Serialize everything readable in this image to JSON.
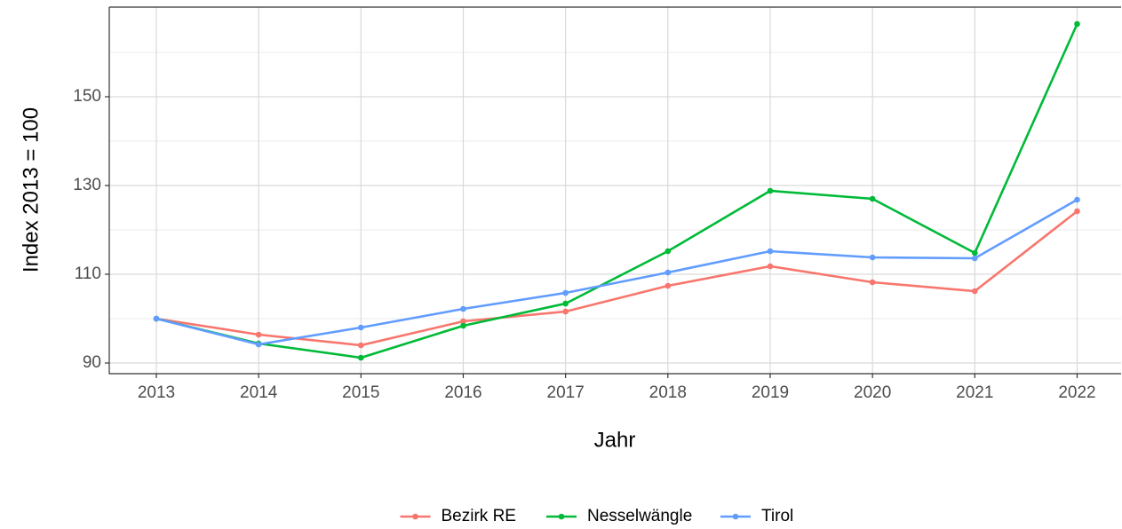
{
  "chart_data": {
    "type": "line",
    "x": [
      2013,
      2014,
      2015,
      2016,
      2017,
      2018,
      2019,
      2020,
      2021,
      2022
    ],
    "series": [
      {
        "name": "Bezirk RE",
        "color": "#F8766D",
        "values": [
          100,
          96.4,
          94,
          99.4,
          101.6,
          107.4,
          111.8,
          108.2,
          106.2,
          124.2
        ]
      },
      {
        "name": "Nesselwängle",
        "color": "#00BA38",
        "values": [
          100,
          94.4,
          91.2,
          98.4,
          103.4,
          115.2,
          128.8,
          127,
          114.8,
          166.4
        ]
      },
      {
        "name": "Tirol",
        "color": "#619CFF",
        "values": [
          100,
          94.2,
          98,
          102.2,
          105.8,
          110.4,
          115.2,
          113.8,
          113.6,
          126.8
        ]
      }
    ],
    "xlabel": "Jahr",
    "ylabel": "Index  2013  = 100",
    "xlim": [
      2012.54,
      2022.43
    ],
    "xticks": [
      2013,
      2014,
      2015,
      2016,
      2017,
      2018,
      2019,
      2020,
      2021,
      2022
    ],
    "ylim": [
      87.6,
      170.2
    ],
    "yticks": [
      90,
      110,
      130,
      150
    ],
    "grid": true,
    "legend": "bottom"
  }
}
